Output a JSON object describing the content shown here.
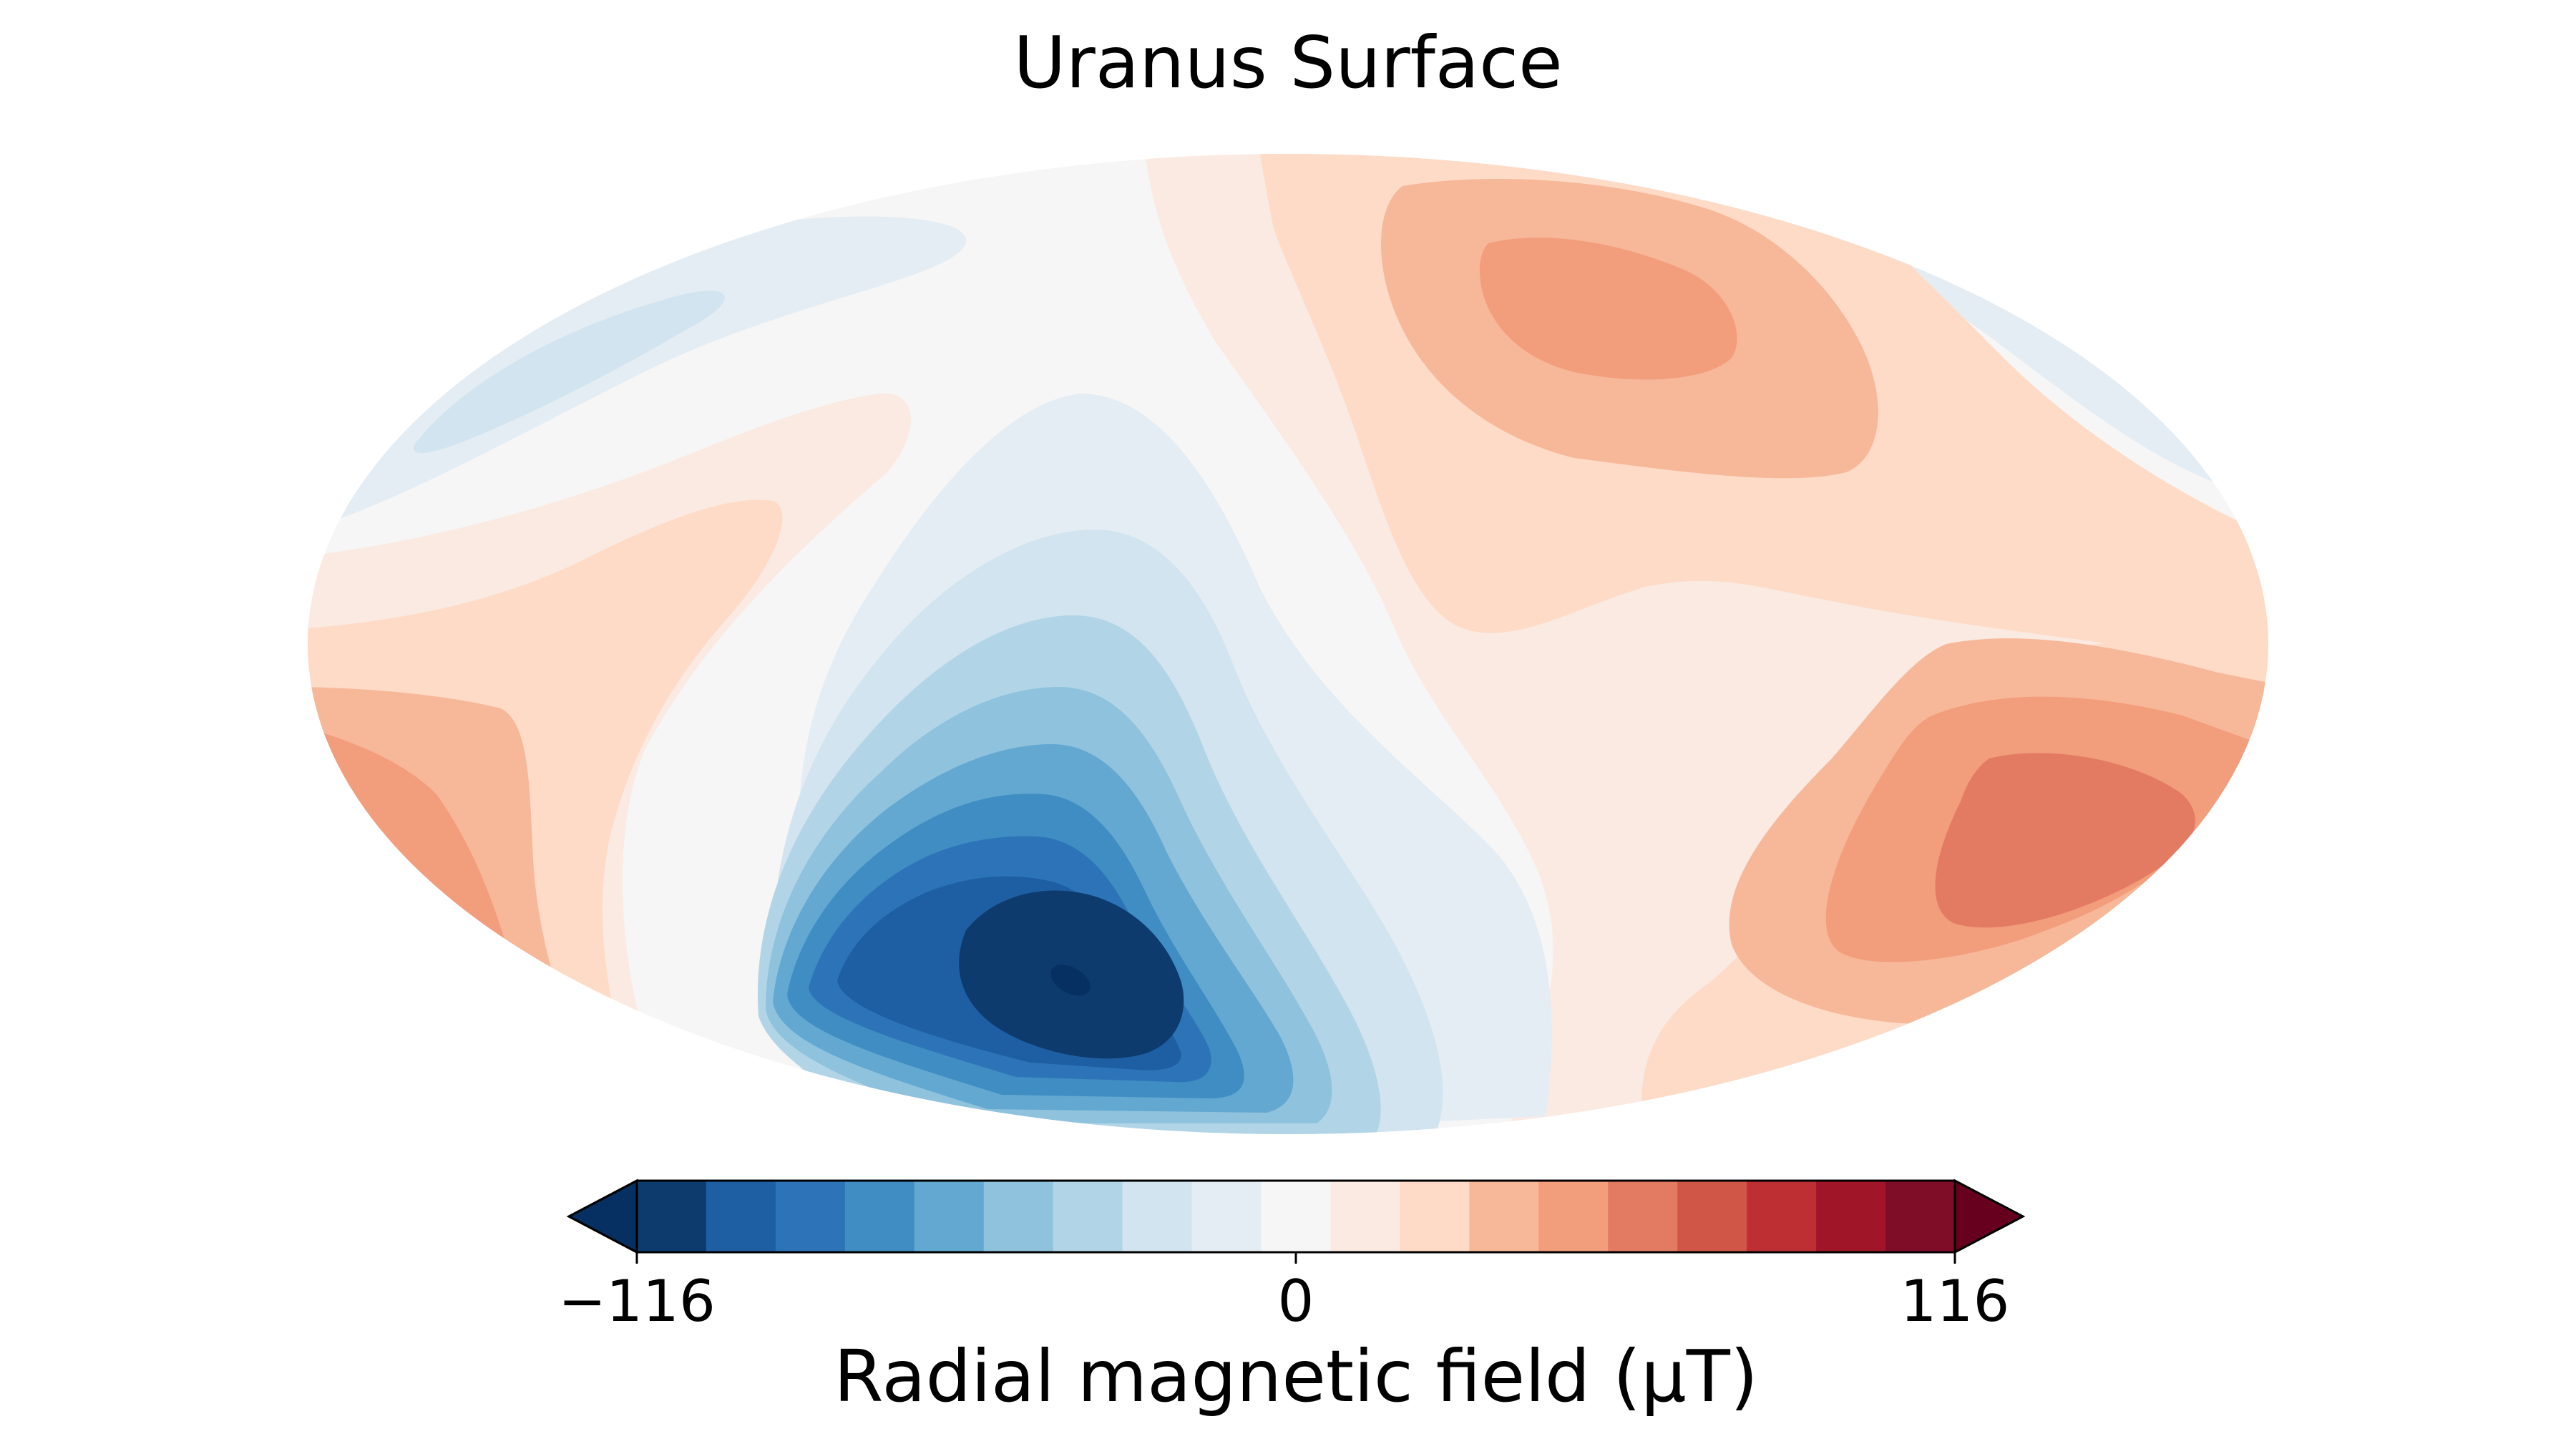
{
  "chart_data": {
    "type": "heatmap",
    "projection": "mollweide",
    "title": "Uranus  Surface",
    "colormap": "RdBu_r",
    "colorbar": {
      "label": "Radial magnetic field (μT)",
      "ticks": [
        "−116",
        "0",
        "116"
      ],
      "tick_values": [
        -116,
        0,
        116
      ],
      "range": [
        -116,
        116
      ],
      "levels": 20,
      "extend": "both",
      "orientation": "horizontal",
      "placement": "bottom",
      "colors": [
        "#053061",
        "#0d3b6e",
        "#1e5fa3",
        "#2c74b7",
        "#3f8dc3",
        "#62a8d1",
        "#8fc2dd",
        "#b1d5e7",
        "#d2e4ef",
        "#e4edf4",
        "#f6f6f6",
        "#faeae2",
        "#fddbc7",
        "#f7b799",
        "#f29d7b",
        "#e27b62",
        "#d05748",
        "#bd2f33",
        "#a01628",
        "#800d27",
        "#67001f"
      ]
    },
    "field_features": [
      {
        "kind": "minimum",
        "lon_deg": -65,
        "lat_deg": -52,
        "value": -116
      },
      {
        "kind": "maximum",
        "lon_deg": 70,
        "lat_deg": 58,
        "value": 70
      },
      {
        "kind": "maximum",
        "lon_deg": 135,
        "lat_deg": -35,
        "value": 80
      },
      {
        "kind": "maximum",
        "lon_deg": -178,
        "lat_deg": -25,
        "value": 60
      }
    ]
  }
}
